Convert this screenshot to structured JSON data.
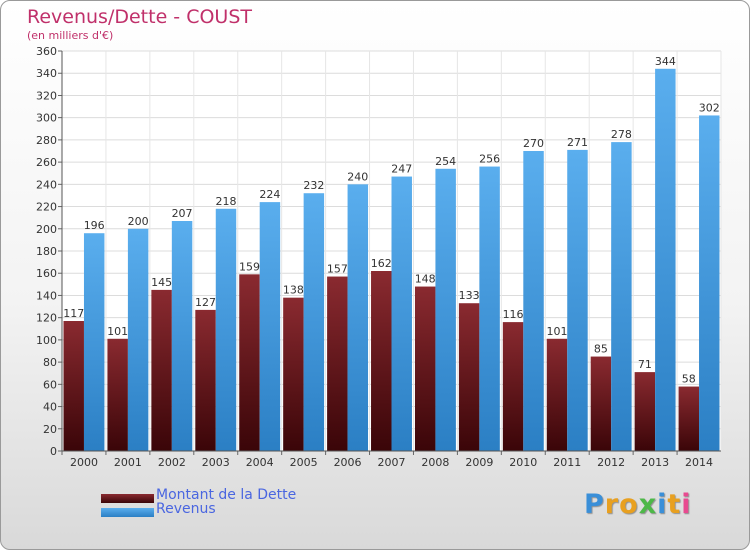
{
  "chart_data": {
    "type": "bar",
    "title": "Revenus/Dette - COUST",
    "subtitle": "(en milliers d'€)",
    "categories": [
      "2000",
      "2001",
      "2002",
      "2003",
      "2004",
      "2005",
      "2006",
      "2007",
      "2008",
      "2009",
      "2010",
      "2011",
      "2012",
      "2013",
      "2014"
    ],
    "series": [
      {
        "name": "Montant de la Dette",
        "color": "#7a1a1f",
        "values": [
          117,
          101,
          145,
          127,
          159,
          138,
          157,
          162,
          148,
          133,
          116,
          101,
          85,
          71,
          58
        ]
      },
      {
        "name": "Revenus",
        "color": "#4aa3e8",
        "values": [
          196,
          200,
          207,
          218,
          224,
          232,
          240,
          247,
          254,
          256,
          270,
          271,
          278,
          344,
          302
        ]
      }
    ],
    "ylim": [
      0,
      360
    ],
    "ytick_step": 20,
    "grid": true,
    "legend": "bottom-left"
  },
  "logo": {
    "letters": [
      "P",
      "r",
      "o",
      "x",
      "i",
      "t",
      "i"
    ],
    "colors": [
      "#3a8fd8",
      "#e8a020",
      "#e8a020",
      "#4db848",
      "#3a8fd8",
      "#e8a020",
      "#e84a90"
    ]
  }
}
